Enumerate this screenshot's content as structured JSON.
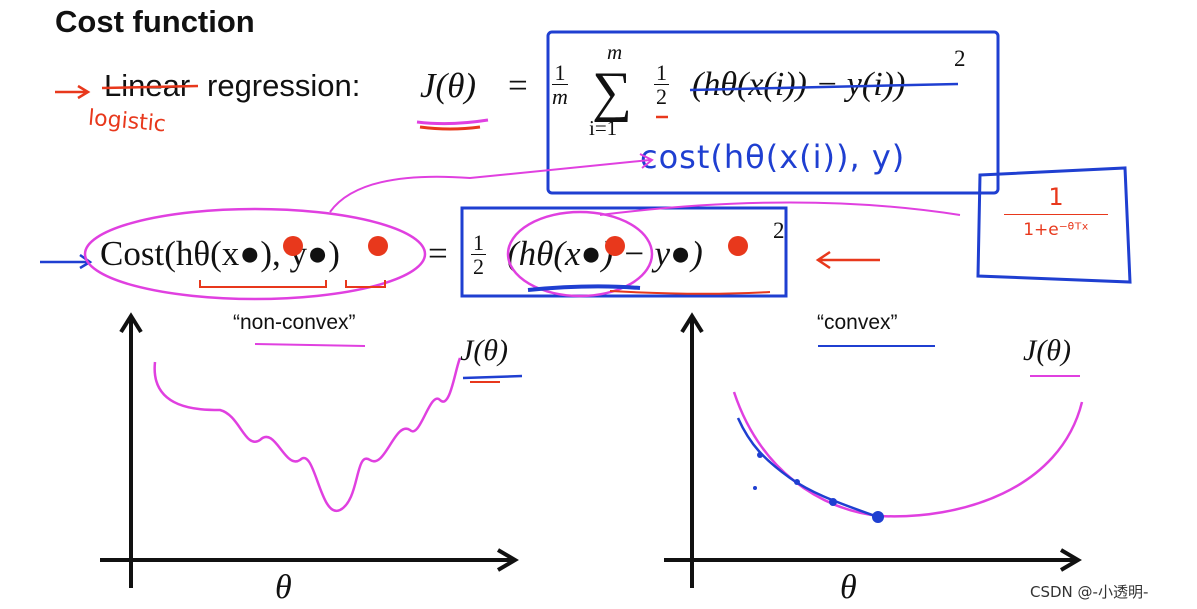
{
  "slide": {
    "title": "Cost function",
    "linear_label": "Linear",
    "regression_label": "regression:",
    "j_theta": "J(θ)",
    "equals": "=",
    "one": "1",
    "m": "m",
    "sum_sign": "∑",
    "sum_top": "m",
    "sum_bottom": "i=1",
    "half_num": "1",
    "half_den": "2",
    "h_term": "(hθ(x(i)) − y(i))",
    "square": "2",
    "cost_lhs": "Cost(hθ(x●), y●)",
    "rhs_term": "(hθ(x●) − y●)",
    "non_convex": "“non-convex”",
    "convex": "“convex”",
    "j_left": "J(θ)",
    "j_right": "J(θ)",
    "theta_left": "θ",
    "theta_right": "θ"
  },
  "annotations": {
    "logistic": "logistic",
    "cost_handwritten": "cost(hθ(x(i)), y)",
    "sigmoid_num": "1",
    "sigmoid_den": "1+e⁻ᶿᵀˣ"
  },
  "watermark": "CSDN @-小透明-",
  "colors": {
    "pen_red": "#e8381c",
    "pen_blue": "#1f3fd1",
    "pen_pink": "#e040e0",
    "text": "#111111"
  }
}
